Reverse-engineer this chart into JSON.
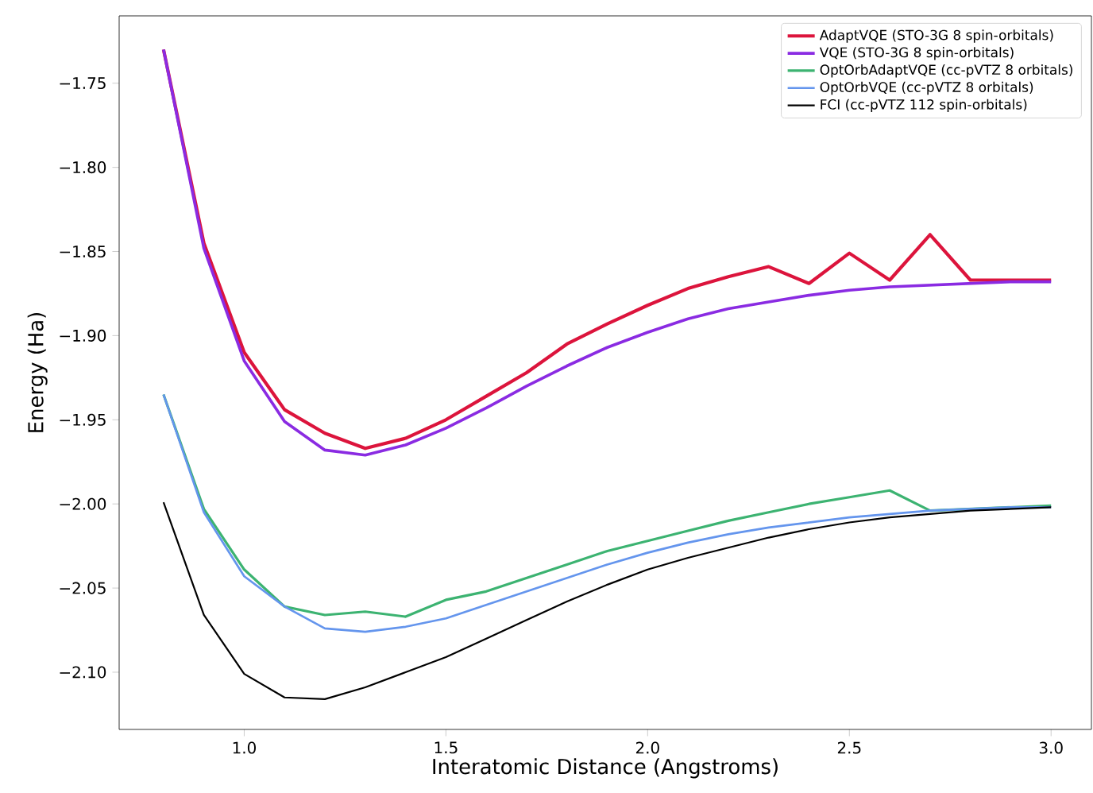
{
  "chart_data": {
    "type": "line",
    "xlabel": "Interatomic Distance (Angstroms)",
    "ylabel": "Energy (Ha)",
    "x": [
      0.8,
      0.9,
      1.0,
      1.1,
      1.2,
      1.3,
      1.4,
      1.5,
      1.6,
      1.7,
      1.8,
      1.9,
      2.0,
      2.1,
      2.2,
      2.3,
      2.4,
      2.5,
      2.6,
      2.7,
      2.8,
      2.9,
      3.0
    ],
    "series": [
      {
        "name": "AdaptVQE (STO-3G 8 spin-orbitals)",
        "color": "#dc143c",
        "values": [
          -1.73,
          -1.845,
          -1.91,
          -1.944,
          -1.958,
          -1.967,
          -1.961,
          -1.95,
          -1.936,
          -1.922,
          -1.905,
          -1.893,
          -1.882,
          -1.872,
          -1.865,
          -1.859,
          -1.869,
          -1.851,
          -1.867,
          -1.84,
          -1.867,
          -1.867,
          -1.867
        ]
      },
      {
        "name": "VQE (STO-3G 8 spin-orbitals)",
        "color": "#8a2be2",
        "values": [
          -1.73,
          -1.848,
          -1.915,
          -1.951,
          -1.968,
          -1.971,
          -1.965,
          -1.955,
          -1.943,
          -1.93,
          -1.918,
          -1.907,
          -1.898,
          -1.89,
          -1.884,
          -1.88,
          -1.876,
          -1.873,
          -1.871,
          -1.87,
          -1.869,
          -1.868,
          -1.868
        ]
      },
      {
        "name": "OptOrbAdaptVQE (cc-pVTZ 8 orbitals)",
        "color": "#3cb371",
        "values": [
          -1.935,
          -2.003,
          -2.039,
          -2.061,
          -2.066,
          -2.064,
          -2.067,
          -2.057,
          -2.052,
          -2.044,
          -2.036,
          -2.028,
          -2.022,
          -2.016,
          -2.01,
          -2.005,
          -2.0,
          -1.996,
          -1.992,
          -2.004,
          -2.003,
          -2.002,
          -2.001
        ]
      },
      {
        "name": "OptOrbVQE (cc-pVTZ 8 orbitals)",
        "color": "#6495ed",
        "values": [
          -1.935,
          -2.005,
          -2.043,
          -2.061,
          -2.074,
          -2.076,
          -2.073,
          -2.068,
          -2.06,
          -2.052,
          -2.044,
          -2.036,
          -2.029,
          -2.023,
          -2.018,
          -2.014,
          -2.011,
          -2.008,
          -2.006,
          -2.004,
          -2.003,
          -2.002,
          -2.002
        ]
      },
      {
        "name": "FCI (cc-pVTZ 112 spin-orbitals)",
        "color": "#000000",
        "values": [
          -1.999,
          -2.066,
          -2.101,
          -2.115,
          -2.116,
          -2.109,
          -2.1,
          -2.091,
          -2.08,
          -2.069,
          -2.058,
          -2.048,
          -2.039,
          -2.032,
          -2.026,
          -2.02,
          -2.015,
          -2.011,
          -2.008,
          -2.006,
          -2.004,
          -2.003,
          -2.002
        ]
      }
    ],
    "xlim": [
      0.69,
      3.1
    ],
    "ylim": [
      -2.134,
      -1.71
    ],
    "xticks": [
      {
        "value": 1.0,
        "label": "1.0"
      },
      {
        "value": 1.5,
        "label": "1.5"
      },
      {
        "value": 2.0,
        "label": "2.0"
      },
      {
        "value": 2.5,
        "label": "2.5"
      },
      {
        "value": 3.0,
        "label": "3.0"
      }
    ],
    "yticks": [
      {
        "value": -2.1,
        "label": "−2.10"
      },
      {
        "value": -2.05,
        "label": "−2.05"
      },
      {
        "value": -2.0,
        "label": "−2.00"
      },
      {
        "value": -1.95,
        "label": "−1.95"
      },
      {
        "value": -1.9,
        "label": "−1.90"
      },
      {
        "value": -1.85,
        "label": "−1.85"
      },
      {
        "value": -1.8,
        "label": "−1.80"
      },
      {
        "value": -1.75,
        "label": "−1.75"
      }
    ],
    "legend": "top right",
    "marker": "none",
    "line_style": "solid"
  }
}
